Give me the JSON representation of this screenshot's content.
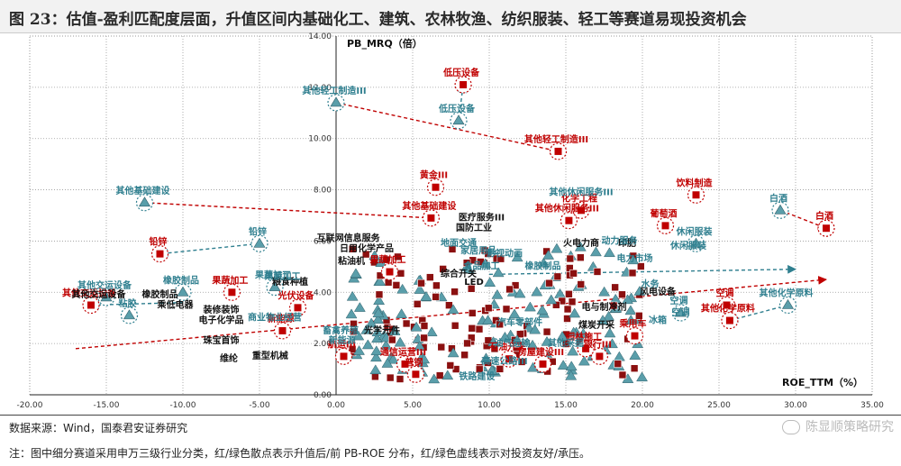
{
  "figure_title": "图 23：估值-盈利匹配度层面，升值区间内基础化工、建筑、农林牧渔、纺织服装、轻工等赛道易现投资机会",
  "source_text": "数据来源：Wind，国泰君安证券研究",
  "note_text": "注：图中细分赛道采用申万三级行业分类，红/绿色散点表示升值后/前 PB-ROE 分布，红/绿色虚线表示对投资友好/承压。",
  "watermark_text": "陈显顺策略研究",
  "colors": {
    "red": "#c00000",
    "teal": "#2f7f8f",
    "teal_fill": "#5a9eaa",
    "dark_red_fill": "#8b1010",
    "grid": "#9a9a9a"
  },
  "chart_data": {
    "type": "scatter",
    "xlabel": "ROE_TTM（%）",
    "ylabel": "PB_MRQ（倍）",
    "xlim": [
      -20,
      35
    ],
    "ylim": [
      0,
      14
    ],
    "x_ticks": [
      "-20.00",
      "-15.00",
      "-10.00",
      "-5.00",
      "0.00",
      "5.00",
      "10.00",
      "15.00",
      "20.00",
      "25.00",
      "30.00",
      "35.00"
    ],
    "y_ticks": [
      "0.00",
      "2.00",
      "4.00",
      "6.00",
      "8.00",
      "10.00",
      "12.00",
      "14.00"
    ],
    "grid": true,
    "series": [
      {
        "name": "升值后",
        "color": "red",
        "marker": "square",
        "points": [
          {
            "x": 8.3,
            "y": 12.1,
            "label": "低压设备"
          },
          {
            "x": 14.5,
            "y": 9.5,
            "label": "其他轻工制造III"
          },
          {
            "x": 6.2,
            "y": 6.9,
            "label": "其他基础建设"
          },
          {
            "x": -11.5,
            "y": 5.5,
            "label": "铅锌"
          },
          {
            "x": -16.0,
            "y": 3.5,
            "label": "其他交运设备"
          },
          {
            "x": 32.0,
            "y": 6.5,
            "label": "白酒"
          },
          {
            "x": 25.5,
            "y": 3.5,
            "label": "空调"
          },
          {
            "x": 25.7,
            "y": 2.9,
            "label": "其他化学原料"
          },
          {
            "x": 16.0,
            "y": 7.2,
            "label": "化学工程"
          },
          {
            "x": 15.2,
            "y": 6.8,
            "label": "其他休闲服务III"
          },
          {
            "x": 21.5,
            "y": 6.6,
            "label": "葡萄酒"
          },
          {
            "x": 23.5,
            "y": 7.8,
            "label": "饮料制造"
          },
          {
            "x": -2.5,
            "y": 3.4,
            "label": "光伏设备"
          },
          {
            "x": -3.5,
            "y": 2.5,
            "label": "新能源"
          },
          {
            "x": 0.5,
            "y": 1.5,
            "label": "航运III"
          },
          {
            "x": 4.5,
            "y": 1.2,
            "label": "通信运营III"
          },
          {
            "x": 5.2,
            "y": 0.8,
            "label": "普钢"
          },
          {
            "x": 17.2,
            "y": 1.5,
            "label": "银行III"
          },
          {
            "x": 13.5,
            "y": 1.2,
            "label": "房屋建设III"
          },
          {
            "x": 11.3,
            "y": 1.4,
            "label": "石油开采"
          },
          {
            "x": 19.5,
            "y": 2.3,
            "label": "乘用车"
          },
          {
            "x": 16.3,
            "y": 1.8,
            "label": "园林施工"
          },
          {
            "x": 6.5,
            "y": 8.1,
            "label": "黄金III"
          },
          {
            "x": 3.5,
            "y": 4.8,
            "label": "果蔬加工"
          },
          {
            "x": -6.8,
            "y": 4.0,
            "label": "果蔬加工"
          }
        ]
      },
      {
        "name": "升值前",
        "color": "teal",
        "marker": "triangle",
        "points": [
          {
            "x": 0.0,
            "y": 11.4,
            "label": "其他轻工制造III"
          },
          {
            "x": 8.0,
            "y": 10.7,
            "label": "低压设备"
          },
          {
            "x": -12.5,
            "y": 7.5,
            "label": "其他基础建设"
          },
          {
            "x": -5.0,
            "y": 5.9,
            "label": "铅锌"
          },
          {
            "x": -15.0,
            "y": 3.8,
            "label": "其他交运设备"
          },
          {
            "x": 29.0,
            "y": 7.2,
            "label": "白酒"
          },
          {
            "x": 29.5,
            "y": 3.5,
            "label": "其他化学原料"
          },
          {
            "x": 22.5,
            "y": 3.2,
            "label": "空调"
          },
          {
            "x": -13.5,
            "y": 3.1,
            "label": "粘胶"
          },
          {
            "x": -10.0,
            "y": 4.0,
            "label": "橡胶制品"
          },
          {
            "x": 23.5,
            "y": 5.9,
            "label": "休闲服装"
          },
          {
            "x": -4.0,
            "y": 4.2,
            "label": "果蔬加工"
          }
        ]
      }
    ],
    "arrows": [
      {
        "color": "red",
        "from": [
          0.0,
          11.4
        ],
        "to": [
          14.5,
          9.5
        ]
      },
      {
        "color": "teal",
        "from": [
          8.0,
          10.7
        ],
        "to": [
          8.3,
          12.1
        ]
      },
      {
        "color": "red",
        "from": [
          -12.5,
          7.5
        ],
        "to": [
          6.2,
          6.9
        ]
      },
      {
        "color": "teal",
        "from": [
          -5.0,
          5.9
        ],
        "to": [
          -11.5,
          5.5
        ]
      },
      {
        "color": "teal",
        "from": [
          -10.0,
          3.6
        ],
        "to": [
          -16.0,
          3.5
        ]
      },
      {
        "color": "red",
        "from": [
          29.0,
          7.2
        ],
        "to": [
          32.0,
          6.5
        ]
      },
      {
        "color": "teal",
        "from": [
          29.5,
          3.5
        ],
        "to": [
          25.7,
          2.9
        ]
      },
      {
        "color": "teal",
        "from": [
          10.0,
          4.7
        ],
        "to": [
          30.0,
          4.9
        ]
      },
      {
        "color": "red",
        "from": [
          -17.0,
          1.8
        ],
        "to": [
          32.0,
          4.5
        ]
      }
    ],
    "other_labels": [
      {
        "x": -15.5,
        "y": 3.8,
        "text": "其他交运设备",
        "color": "black"
      },
      {
        "x": -11.5,
        "y": 3.8,
        "text": "橡胶制品",
        "color": "black"
      },
      {
        "x": -10.5,
        "y": 3.4,
        "text": "乘低电器",
        "color": "black"
      },
      {
        "x": -3.0,
        "y": 4.3,
        "text": "粮食种植",
        "color": "black"
      },
      {
        "x": 1.0,
        "y": 5.1,
        "text": "粘油机",
        "color": "black"
      },
      {
        "x": 2.0,
        "y": 5.6,
        "text": "日用化学产品",
        "color": "black"
      },
      {
        "x": 0.8,
        "y": 6.0,
        "text": "互联网信息服务",
        "color": "black"
      },
      {
        "x": 9.5,
        "y": 6.8,
        "text": "医疗服务III",
        "color": "black"
      },
      {
        "x": 9.0,
        "y": 6.4,
        "text": "国防工业",
        "color": "black"
      },
      {
        "x": 19.0,
        "y": 5.8,
        "text": "印肥",
        "color": "black"
      },
      {
        "x": -7.5,
        "y": 2.0,
        "text": "珠宝首饰",
        "color": "black"
      },
      {
        "x": -7.0,
        "y": 1.3,
        "text": "维纶",
        "color": "black"
      },
      {
        "x": -4.3,
        "y": 1.4,
        "text": "重型机械",
        "color": "black"
      },
      {
        "x": 9.0,
        "y": 4.3,
        "text": "LED",
        "color": "black"
      },
      {
        "x": 8.0,
        "y": 4.6,
        "text": "综合开关",
        "color": "black"
      },
      {
        "x": 17.5,
        "y": 3.3,
        "text": "电与制冷剂",
        "color": "black"
      },
      {
        "x": 21.0,
        "y": 3.9,
        "text": "风电设备",
        "color": "black"
      },
      {
        "x": -7.5,
        "y": 2.8,
        "text": "电子化学品",
        "color": "black"
      },
      {
        "x": -7.5,
        "y": 3.2,
        "text": "装修装饰",
        "color": "black"
      },
      {
        "x": 3.0,
        "y": 2.4,
        "text": "光学元件",
        "color": "black"
      },
      {
        "x": 17.0,
        "y": 2.6,
        "text": "煤炭开采",
        "color": "black"
      },
      {
        "x": 16.0,
        "y": 5.8,
        "text": "火电力商",
        "color": "black"
      },
      {
        "x": 11.0,
        "y": 1.2,
        "text": "高速公路III",
        "color": "teal"
      },
      {
        "x": 9.2,
        "y": 0.6,
        "text": "铁路建设",
        "color": "teal"
      },
      {
        "x": 11.5,
        "y": 1.9,
        "text": "油气运输",
        "color": "teal"
      },
      {
        "x": 16.0,
        "y": 7.8,
        "text": "其他休闲服务III",
        "color": "teal"
      },
      {
        "x": 18.5,
        "y": 5.9,
        "text": "动力服务",
        "color": "teal"
      },
      {
        "x": 19.5,
        "y": 5.2,
        "text": "电力市场",
        "color": "teal"
      },
      {
        "x": 23.0,
        "y": 5.7,
        "text": "休闲服装",
        "color": "teal"
      },
      {
        "x": 21.0,
        "y": 2.8,
        "text": "冰箱",
        "color": "teal"
      },
      {
        "x": 22.5,
        "y": 3.1,
        "text": "空调",
        "color": "teal"
      },
      {
        "x": -4.0,
        "y": 2.9,
        "text": "商业物业经营",
        "color": "teal"
      },
      {
        "x": -3.5,
        "y": 4.5,
        "text": "果蔬加工",
        "color": "teal"
      },
      {
        "x": 0.3,
        "y": 2.4,
        "text": "畜禽养殖",
        "color": "teal"
      },
      {
        "x": 0.4,
        "y": 2.0,
        "text": "新能源",
        "color": "teal"
      },
      {
        "x": 9.5,
        "y": 4.9,
        "text": "食品加工",
        "color": "teal"
      },
      {
        "x": 8.0,
        "y": 5.8,
        "text": "地面交通",
        "color": "teal"
      },
      {
        "x": 9.3,
        "y": 5.5,
        "text": "家居用品",
        "color": "teal"
      },
      {
        "x": 13.5,
        "y": 4.9,
        "text": "橡胶制品",
        "color": "teal"
      },
      {
        "x": 11.0,
        "y": 5.4,
        "text": "影视动画",
        "color": "teal"
      },
      {
        "x": 20.5,
        "y": 4.2,
        "text": "水务",
        "color": "teal"
      },
      {
        "x": 15.0,
        "y": 1.9,
        "text": "其他采掘",
        "color": "teal"
      },
      {
        "x": 12.0,
        "y": 2.7,
        "text": "汽车零部件",
        "color": "teal"
      }
    ]
  }
}
